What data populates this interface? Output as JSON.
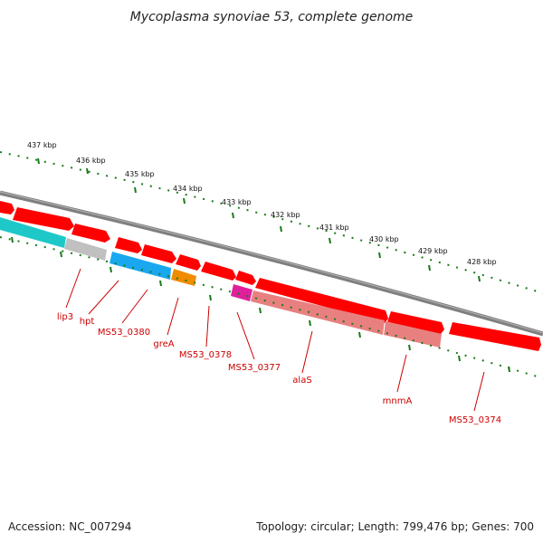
{
  "title": "Mycoplasma synoviae 53, complete genome",
  "footer": {
    "accession": "Accession: NC_007294",
    "summary": "Topology: circular; Length: 799,476 bp; Genes: 700"
  },
  "colors": {
    "backbone": "#7f7f7f",
    "tick": "#1a7a1a",
    "label": "#cc0000",
    "gene_red": "#ff0000",
    "gene_pink": "#e88080",
    "gene_grey": "#c0c0c0",
    "gene_cyan": "#1ec8c8",
    "gene_blue": "#19a8f0",
    "gene_orange": "#f08c00",
    "gene_magenta": "#e0209a"
  },
  "scale_labels": [
    "437 kbp",
    "436 kbp",
    "435 kbp",
    "434 kbp",
    "433 kbp",
    "432 kbp",
    "431 kbp",
    "430 kbp",
    "429 kbp",
    "428 kbp"
  ],
  "gene_labels": [
    "lip3",
    "hpt",
    "MS53_0380",
    "greA",
    "MS53_0378",
    "MS53_0377",
    "alaS",
    "mnmA",
    "MS53_0374"
  ]
}
